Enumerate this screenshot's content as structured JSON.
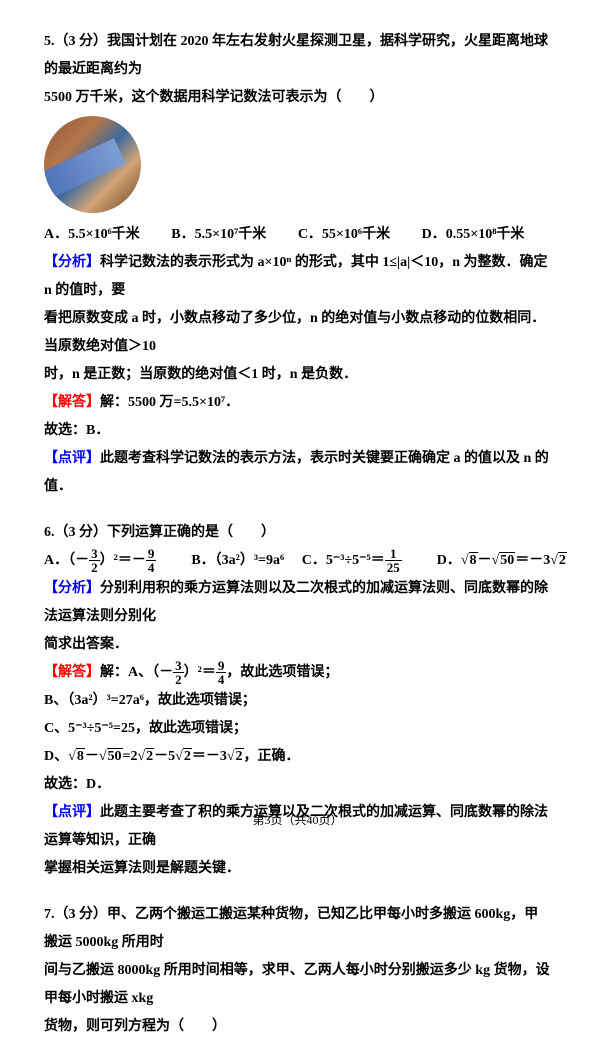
{
  "q5": {
    "stem1": "5.（3 分）我国计划在 2020 年左右发射火星探测卫星，据科学研究，火星距离地球的最近距离约为",
    "stem2": "5500 万千米，这个数据用科学记数法可表示为（　　）",
    "optA": "A．5.5×10⁶千米",
    "optB": "B．5.5×10⁷千米",
    "optC": "C．55×10⁶千米",
    "optD": "D．0.55×10⁸千米",
    "analysis_label": "【分析】",
    "analysis1": "科学记数法的表示形式为 a×10ⁿ 的形式，其中 1≤|a|＜10，n 为整数．确定 n 的值时，要",
    "analysis2": "看把原数变成 a 时，小数点移动了多少位，n 的绝对值与小数点移动的位数相同．当原数绝对值＞10",
    "analysis3": "时，n 是正数；当原数的绝对值＜1 时，n 是负数．",
    "solve_label": "【解答】",
    "solve1": "解：5500 万=5.5×10⁷．",
    "solve2": "故选：B．",
    "comment_label": "【点评】",
    "comment": "此题考查科学记数法的表示方法，表示时关键要正确确定 a 的值以及 n 的值．"
  },
  "q6": {
    "stem": "6.（3 分）下列运算正确的是（　　）",
    "optA_pre": "A．（－",
    "optA_frac_num": "3",
    "optA_frac_den": "2",
    "optA_mid": "）²＝－",
    "optA_frac2_num": "9",
    "optA_frac2_den": "4",
    "optB": "B．（3a²）³=9a⁶",
    "optC_pre": "C．5⁻³÷5⁻⁵＝",
    "optC_frac_num": "1",
    "optC_frac_den": "25",
    "optD_pre": "D．",
    "optD_s8": "8",
    "optD_mid": "－",
    "optD_s50": "50",
    "optD_post": "＝－3",
    "optD_s2": "2",
    "analysis_label": "【分析】",
    "analysis1": "分别利用积的乘方运算法则以及二次根式的加减运算法则、同底数幂的除法运算法则分别化",
    "analysis2": "简求出答案．",
    "solve_label": "【解答】",
    "solveA_pre": "解：A、（－",
    "solveA_mid": "）²＝",
    "solveA_post": "，故此选项错误；",
    "solveB": "B、（3a²）³=27a⁶，故此选项错误；",
    "solveC": "C、5⁻³÷5⁻⁵=25，故此选项错误；",
    "solveD_pre": "D、",
    "solveD_mid1": "－",
    "solveD_mid2": "=2",
    "solveD_mid3": "－5",
    "solveD_mid4": "＝－3",
    "solveD_post": "，正确．",
    "solve_final": "故选：D．",
    "comment_label": "【点评】",
    "comment1": "此题主要考查了积的乘方运算以及二次根式的加减运算、同底数幂的除法运算等知识，正确",
    "comment2": "掌握相关运算法则是解题关键．"
  },
  "q7": {
    "stem1": "7.（3 分）甲、乙两个搬运工搬运某种货物，已知乙比甲每小时多搬运 600kg，甲搬运 5000kg 所用时",
    "stem2": "间与乙搬运 8000kg 所用时间相等，求甲、乙两人每小时分别搬运多少 kg 货物，设甲每小时搬运 xkg",
    "stem3": "货物，则可列方程为（　　）"
  },
  "footer": "第3页（共40页）"
}
